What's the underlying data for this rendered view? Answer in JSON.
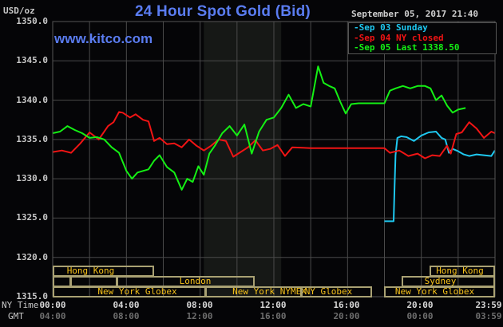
{
  "header": {
    "title": "24 Hour Spot Gold (Bid)",
    "units": "USD/oz",
    "website": "www.kitco.com",
    "datetime": "September 05, 2017 21:40"
  },
  "legend": [
    {
      "label": "Sep 03 Sunday",
      "color": "#1ec8f0"
    },
    {
      "label": "Sep 04 NY closed",
      "color": "#f01414"
    },
    {
      "label": "Sep 05 Last 1338.50",
      "color": "#14f014"
    }
  ],
  "y_axis": {
    "ticks": [
      "1350.0",
      "1345.0",
      "1340.0",
      "1335.0",
      "1330.0",
      "1325.0",
      "1320.0",
      "1315.0"
    ]
  },
  "x_axis": {
    "row_labels": {
      "ny": "NY Time",
      "gmt": "GMT"
    },
    "ny_ticks": [
      "00:00",
      "04:00",
      "08:00",
      "12:00",
      "16:00",
      "20:00",
      "23:59"
    ],
    "gmt_ticks": [
      "04:00",
      "08:00",
      "12:00",
      "16:00",
      "20:00",
      "00:00",
      "03:59"
    ]
  },
  "sessions": {
    "hong_kong_1": "Hong Kong",
    "london": "London",
    "ny_globex_1": "New York Globex",
    "ny_nymex": "New York NYMEX",
    "ny_globex_2": "NY Globex",
    "hong_kong_2": "Hong Kong",
    "sydney": "Sydney",
    "ny_globex_3": "New York Globex"
  },
  "chart_data": {
    "type": "line",
    "title": "24 Hour Spot Gold (Bid)",
    "xlabel": "NY Time (GMT below)",
    "ylabel": "USD/oz",
    "ylim": [
      1315,
      1350
    ],
    "xlim_hours": [
      0,
      24
    ],
    "grid": true,
    "legend_position": "top-right",
    "x_tick_labels": [
      "00:00",
      "04:00",
      "08:00",
      "12:00",
      "16:00",
      "20:00",
      "23:59"
    ],
    "shaded_region_hours": [
      8.2,
      12.4
    ],
    "series": [
      {
        "name": "Sep 03 Sunday",
        "color": "#1ec8f0",
        "x_hours": [
          18.0,
          18.5,
          18.55,
          18.6,
          18.7,
          18.9,
          19.2,
          19.6,
          20.0,
          20.4,
          20.8,
          21.1,
          21.3,
          21.5,
          21.7,
          22.0,
          22.3,
          22.6,
          23.0,
          23.4,
          23.8,
          23.99
        ],
        "values": [
          1324.6,
          1324.6,
          1329.0,
          1333.0,
          1335.2,
          1335.4,
          1335.3,
          1334.8,
          1335.5,
          1335.9,
          1336.0,
          1335.2,
          1335.0,
          1333.3,
          1333.8,
          1333.5,
          1333.1,
          1332.9,
          1333.1,
          1333.0,
          1332.9,
          1333.6
        ]
      },
      {
        "name": "Sep 04 NY closed",
        "color": "#f01414",
        "x_hours": [
          0,
          0.5,
          1.0,
          1.5,
          2.0,
          2.5,
          3.0,
          3.3,
          3.6,
          3.8,
          4.2,
          4.5,
          4.9,
          5.2,
          5.5,
          5.8,
          6.2,
          6.6,
          7.0,
          7.4,
          7.8,
          8.2,
          8.6,
          9.0,
          9.4,
          9.8,
          10.2,
          10.6,
          11.0,
          11.4,
          11.8,
          12.2,
          12.6,
          13.0,
          14.0,
          15.0,
          16.0,
          17.0,
          18.0,
          18.3,
          18.8,
          19.3,
          19.8,
          20.2,
          20.6,
          21.0,
          21.4,
          21.6,
          21.9,
          22.2,
          22.6,
          23.0,
          23.4,
          23.8,
          23.99
        ],
        "values": [
          1333.4,
          1333.6,
          1333.3,
          1334.5,
          1335.9,
          1335.0,
          1336.7,
          1337.2,
          1338.5,
          1338.4,
          1337.8,
          1338.2,
          1337.5,
          1337.3,
          1334.8,
          1335.2,
          1334.4,
          1334.5,
          1334.0,
          1335.0,
          1334.2,
          1333.6,
          1334.2,
          1335.0,
          1334.8,
          1332.8,
          1333.4,
          1334.0,
          1334.9,
          1333.6,
          1333.8,
          1334.3,
          1332.9,
          1334.0,
          1333.9,
          1333.9,
          1333.9,
          1333.9,
          1333.9,
          1333.3,
          1333.6,
          1332.9,
          1333.2,
          1332.6,
          1333.0,
          1332.9,
          1334.2,
          1333.2,
          1335.7,
          1335.9,
          1337.2,
          1336.4,
          1335.2,
          1336.0,
          1335.8
        ]
      },
      {
        "name": "Sep 05 Last 1338.50",
        "color": "#14f014",
        "x_hours": [
          0,
          0.4,
          0.8,
          1.2,
          1.6,
          2.0,
          2.4,
          2.8,
          3.2,
          3.6,
          4.0,
          4.3,
          4.6,
          4.9,
          5.2,
          5.5,
          5.8,
          6.2,
          6.6,
          7.0,
          7.3,
          7.6,
          7.9,
          8.2,
          8.5,
          8.8,
          9.2,
          9.6,
          10.0,
          10.4,
          10.8,
          11.2,
          11.6,
          12.0,
          12.4,
          12.8,
          13.2,
          13.6,
          14.0,
          14.4,
          14.7,
          15.0,
          15.3,
          15.6,
          15.9,
          16.2,
          16.6,
          17.0,
          17.6,
          18.0,
          18.3,
          18.6,
          19.0,
          19.4,
          19.8,
          20.2,
          20.5,
          20.8,
          21.1,
          21.4,
          21.7,
          22.0,
          22.4
        ],
        "values": [
          1335.8,
          1336.0,
          1336.7,
          1336.2,
          1335.8,
          1335.2,
          1335.3,
          1335.0,
          1334.0,
          1333.3,
          1331.0,
          1330.0,
          1330.8,
          1331.0,
          1331.2,
          1332.3,
          1333.0,
          1331.5,
          1330.8,
          1328.6,
          1330.0,
          1329.6,
          1331.6,
          1330.5,
          1333.2,
          1334.2,
          1335.8,
          1336.7,
          1335.5,
          1336.9,
          1333.2,
          1336.0,
          1337.5,
          1337.8,
          1339.0,
          1340.7,
          1339.0,
          1339.5,
          1339.2,
          1344.3,
          1342.2,
          1341.8,
          1341.5,
          1339.8,
          1338.3,
          1339.5,
          1339.6,
          1339.6,
          1339.6,
          1339.6,
          1341.2,
          1341.5,
          1341.8,
          1341.5,
          1341.8,
          1341.8,
          1341.5,
          1340.0,
          1340.6,
          1339.3,
          1338.4,
          1338.8,
          1339.0
        ]
      }
    ]
  }
}
